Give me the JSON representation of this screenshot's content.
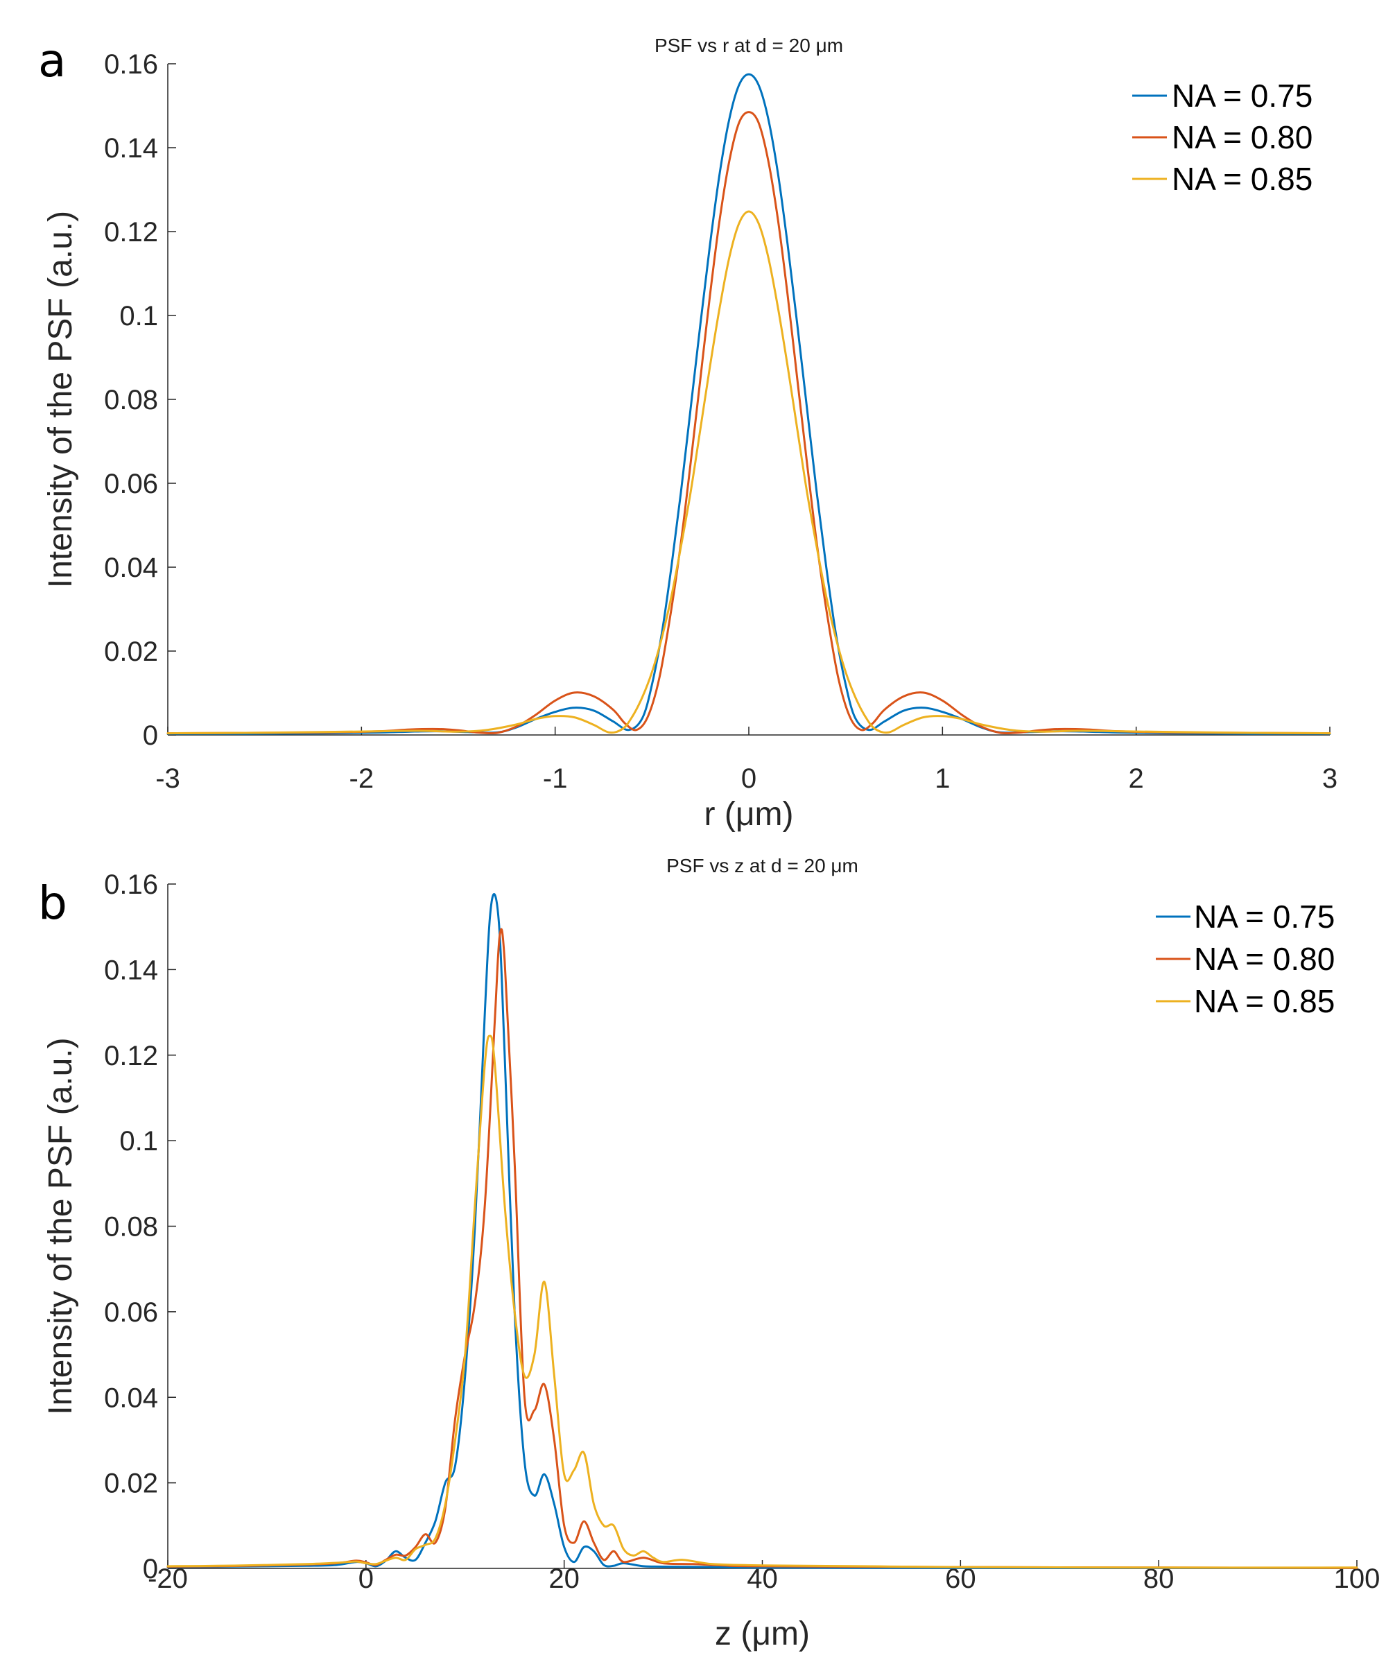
{
  "panels": [
    {
      "letter": "a",
      "chart_data": {
        "type": "line",
        "title": "PSF vs r at d = 20 μm",
        "xlabel": "r (μm)",
        "ylabel": "Intensity of the PSF (a.u.)",
        "xlim": [
          -3,
          3
        ],
        "ylim": [
          0,
          0.16
        ],
        "xticks": [
          -3,
          -2,
          -1,
          0,
          1,
          2,
          3
        ],
        "xtick_labels": [
          "-3",
          "-2",
          "-1",
          "0",
          "1",
          "2",
          "3"
        ],
        "yticks": [
          0,
          0.02,
          0.04,
          0.06,
          0.08,
          0.1,
          0.12,
          0.14,
          0.16
        ],
        "ytick_labels": [
          "0",
          "0.02",
          "0.04",
          "0.06",
          "0.08",
          "0.1",
          "0.12",
          "0.14",
          "0.16"
        ],
        "legend_position": "top-right",
        "grid": false,
        "series": [
          {
            "name": "NA = 0.75",
            "color": "#0072BD",
            "x": [
              -3,
              -2.6,
              -2.2,
              -1.9,
              -1.75,
              -1.6,
              -1.45,
              -1.3,
              -1.2,
              -1.1,
              -1.0,
              -0.9,
              -0.8,
              -0.7,
              -0.62,
              -0.55,
              -0.5,
              -0.45,
              -0.4,
              -0.35,
              -0.3,
              -0.25,
              -0.2,
              -0.15,
              -0.1,
              -0.05,
              0,
              0.05,
              0.1,
              0.15,
              0.2,
              0.25,
              0.3,
              0.35,
              0.4,
              0.45,
              0.5,
              0.55,
              0.62,
              0.7,
              0.8,
              0.9,
              1.0,
              1.1,
              1.2,
              1.3,
              1.45,
              1.6,
              1.75,
              1.9,
              2.2,
              2.6,
              3
            ],
            "y": [
              0.0003,
              0.0003,
              0.0004,
              0.0006,
              0.0008,
              0.0009,
              0.0007,
              0.0006,
              0.0018,
              0.0038,
              0.0055,
              0.0065,
              0.0058,
              0.0032,
              0.0012,
              0.004,
              0.012,
              0.024,
              0.04,
              0.058,
              0.078,
              0.098,
              0.117,
              0.134,
              0.147,
              0.155,
              0.1575,
              0.155,
              0.147,
              0.134,
              0.117,
              0.098,
              0.078,
              0.058,
              0.04,
              0.024,
              0.012,
              0.004,
              0.0012,
              0.0032,
              0.0058,
              0.0065,
              0.0055,
              0.0038,
              0.0018,
              0.0006,
              0.0007,
              0.0009,
              0.0008,
              0.0006,
              0.0004,
              0.0003,
              0.0003
            ]
          },
          {
            "name": "NA = 0.80",
            "color": "#D95319",
            "x": [
              -3,
              -2.6,
              -2.2,
              -1.9,
              -1.75,
              -1.6,
              -1.5,
              -1.4,
              -1.3,
              -1.2,
              -1.1,
              -1.0,
              -0.9,
              -0.8,
              -0.7,
              -0.64,
              -0.58,
              -0.52,
              -0.46,
              -0.4,
              -0.35,
              -0.3,
              -0.25,
              -0.2,
              -0.15,
              -0.1,
              -0.05,
              0,
              0.05,
              0.1,
              0.15,
              0.2,
              0.25,
              0.3,
              0.35,
              0.4,
              0.46,
              0.52,
              0.58,
              0.64,
              0.7,
              0.8,
              0.9,
              1.0,
              1.1,
              1.2,
              1.3,
              1.4,
              1.5,
              1.6,
              1.75,
              1.9,
              2.2,
              2.6,
              3
            ],
            "y": [
              0.0004,
              0.0005,
              0.0006,
              0.0009,
              0.0013,
              0.0014,
              0.0011,
              0.0006,
              0.0005,
              0.002,
              0.0048,
              0.0082,
              0.0101,
              0.0092,
              0.006,
              0.0028,
              0.0012,
              0.0045,
              0.014,
              0.03,
              0.046,
              0.065,
              0.085,
              0.105,
              0.123,
              0.137,
              0.146,
              0.1485,
              0.146,
              0.137,
              0.123,
              0.105,
              0.085,
              0.065,
              0.046,
              0.03,
              0.014,
              0.0045,
              0.0012,
              0.0028,
              0.006,
              0.0092,
              0.0101,
              0.0082,
              0.0048,
              0.002,
              0.0005,
              0.0006,
              0.0011,
              0.0014,
              0.0013,
              0.0009,
              0.0006,
              0.0005,
              0.0004
            ]
          },
          {
            "name": "NA = 0.85",
            "color": "#EDB120",
            "x": [
              -3,
              -2.6,
              -2.2,
              -1.9,
              -1.7,
              -1.5,
              -1.35,
              -1.2,
              -1.1,
              -1.0,
              -0.9,
              -0.8,
              -0.72,
              -0.65,
              -0.6,
              -0.55,
              -0.5,
              -0.45,
              -0.4,
              -0.35,
              -0.3,
              -0.25,
              -0.2,
              -0.15,
              -0.1,
              -0.05,
              0,
              0.05,
              0.1,
              0.15,
              0.2,
              0.25,
              0.3,
              0.35,
              0.4,
              0.45,
              0.5,
              0.55,
              0.6,
              0.65,
              0.72,
              0.8,
              0.9,
              1.0,
              1.1,
              1.2,
              1.35,
              1.5,
              1.7,
              1.9,
              2.2,
              2.6,
              3
            ],
            "y": [
              0.0004,
              0.0005,
              0.0007,
              0.0009,
              0.001,
              0.0008,
              0.0012,
              0.0025,
              0.0038,
              0.0045,
              0.0042,
              0.0024,
              0.0006,
              0.0015,
              0.0045,
              0.009,
              0.015,
              0.023,
              0.033,
              0.045,
              0.058,
              0.073,
              0.088,
              0.102,
              0.114,
              0.122,
              0.1248,
              0.122,
              0.114,
              0.102,
              0.088,
              0.073,
              0.058,
              0.045,
              0.033,
              0.023,
              0.015,
              0.009,
              0.0045,
              0.0015,
              0.0006,
              0.0024,
              0.0042,
              0.0045,
              0.0038,
              0.0025,
              0.0012,
              0.0008,
              0.001,
              0.0009,
              0.0007,
              0.0005,
              0.0004
            ]
          }
        ]
      }
    },
    {
      "letter": "b",
      "chart_data": {
        "type": "line",
        "title": "PSF vs z at d = 20 μm",
        "xlabel": "z (μm)",
        "ylabel": "Intensity of the PSF (a.u.)",
        "xlim": [
          -20,
          100
        ],
        "ylim": [
          0,
          0.16
        ],
        "xticks": [
          -20,
          0,
          20,
          40,
          60,
          80,
          100
        ],
        "xtick_labels": [
          "-20",
          "0",
          "20",
          "40",
          "60",
          "80",
          "100"
        ],
        "yticks": [
          0,
          0.02,
          0.04,
          0.06,
          0.08,
          0.1,
          0.12,
          0.14,
          0.16
        ],
        "ytick_labels": [
          "0",
          "0.02",
          "0.04",
          "0.06",
          "0.08",
          "0.1",
          "0.12",
          "0.14",
          "0.16"
        ],
        "legend_position": "top-right",
        "grid": false,
        "series": [
          {
            "name": "NA = 0.75",
            "color": "#0072BD",
            "x": [
              -20,
              -15,
              -10,
              -6,
              -3,
              -1,
              0,
              1,
              2,
              3,
              4,
              5,
              6,
              7,
              8,
              9,
              10,
              11,
              12,
              12.5,
              13,
              13.5,
              14,
              15,
              16,
              17,
              18,
              19,
              20,
              21,
              22,
              23,
              24,
              25,
              26,
              28,
              30,
              35,
              40,
              60,
              80,
              100
            ],
            "y": [
              0.0003,
              0.0004,
              0.0005,
              0.0006,
              0.0008,
              0.0015,
              0.0012,
              0.0005,
              0.0018,
              0.004,
              0.0025,
              0.002,
              0.006,
              0.011,
              0.02,
              0.024,
              0.045,
              0.08,
              0.13,
              0.152,
              0.1575,
              0.148,
              0.12,
              0.06,
              0.025,
              0.017,
              0.022,
              0.015,
              0.005,
              0.0015,
              0.005,
              0.004,
              0.0008,
              0.0006,
              0.0012,
              0.0005,
              0.0004,
              0.0003,
              0.0002,
              0.0001,
              0.0001,
              0.0001
            ]
          },
          {
            "name": "NA = 0.80",
            "color": "#D95319",
            "x": [
              -20,
              -15,
              -10,
              -6,
              -3,
              -1,
              0,
              1,
              2,
              3,
              4,
              5,
              6,
              7,
              8,
              9,
              10,
              11,
              12,
              13,
              13.5,
              14,
              15,
              16,
              17,
              18,
              19,
              20,
              21,
              22,
              23,
              24,
              25,
              26,
              28,
              30,
              33,
              36,
              40,
              60,
              80,
              100
            ],
            "y": [
              0.0004,
              0.0005,
              0.0007,
              0.0009,
              0.0012,
              0.0018,
              0.0014,
              0.0008,
              0.002,
              0.0032,
              0.003,
              0.005,
              0.008,
              0.006,
              0.014,
              0.035,
              0.05,
              0.062,
              0.085,
              0.128,
              0.148,
              0.142,
              0.095,
              0.04,
              0.037,
              0.043,
              0.03,
              0.01,
              0.006,
              0.011,
              0.006,
              0.002,
              0.004,
              0.0015,
              0.0025,
              0.0012,
              0.001,
              0.0007,
              0.0005,
              0.0003,
              0.0002,
              0.0001
            ]
          },
          {
            "name": "NA = 0.85",
            "color": "#EDB120",
            "x": [
              -20,
              -15,
              -10,
              -6,
              -3,
              -1,
              0,
              1,
              2,
              3,
              4,
              5,
              6,
              7,
              8,
              9,
              10,
              11,
              12,
              12.5,
              13,
              14,
              15,
              16,
              17,
              18,
              19,
              20,
              21,
              22,
              23,
              24,
              25,
              26,
              27,
              28,
              29,
              30,
              32,
              35,
              40,
              50,
              60,
              80,
              100
            ],
            "y": [
              0.0005,
              0.0006,
              0.0008,
              0.001,
              0.0013,
              0.0016,
              0.0012,
              0.001,
              0.0018,
              0.0025,
              0.002,
              0.0045,
              0.0055,
              0.007,
              0.015,
              0.03,
              0.05,
              0.085,
              0.118,
              0.1245,
              0.118,
              0.085,
              0.06,
              0.045,
              0.05,
              0.067,
              0.045,
              0.022,
              0.023,
              0.027,
              0.015,
              0.01,
              0.01,
              0.0045,
              0.003,
              0.004,
              0.0025,
              0.0015,
              0.002,
              0.001,
              0.0007,
              0.0005,
              0.0003,
              0.0002,
              0.0002
            ]
          }
        ]
      }
    }
  ]
}
